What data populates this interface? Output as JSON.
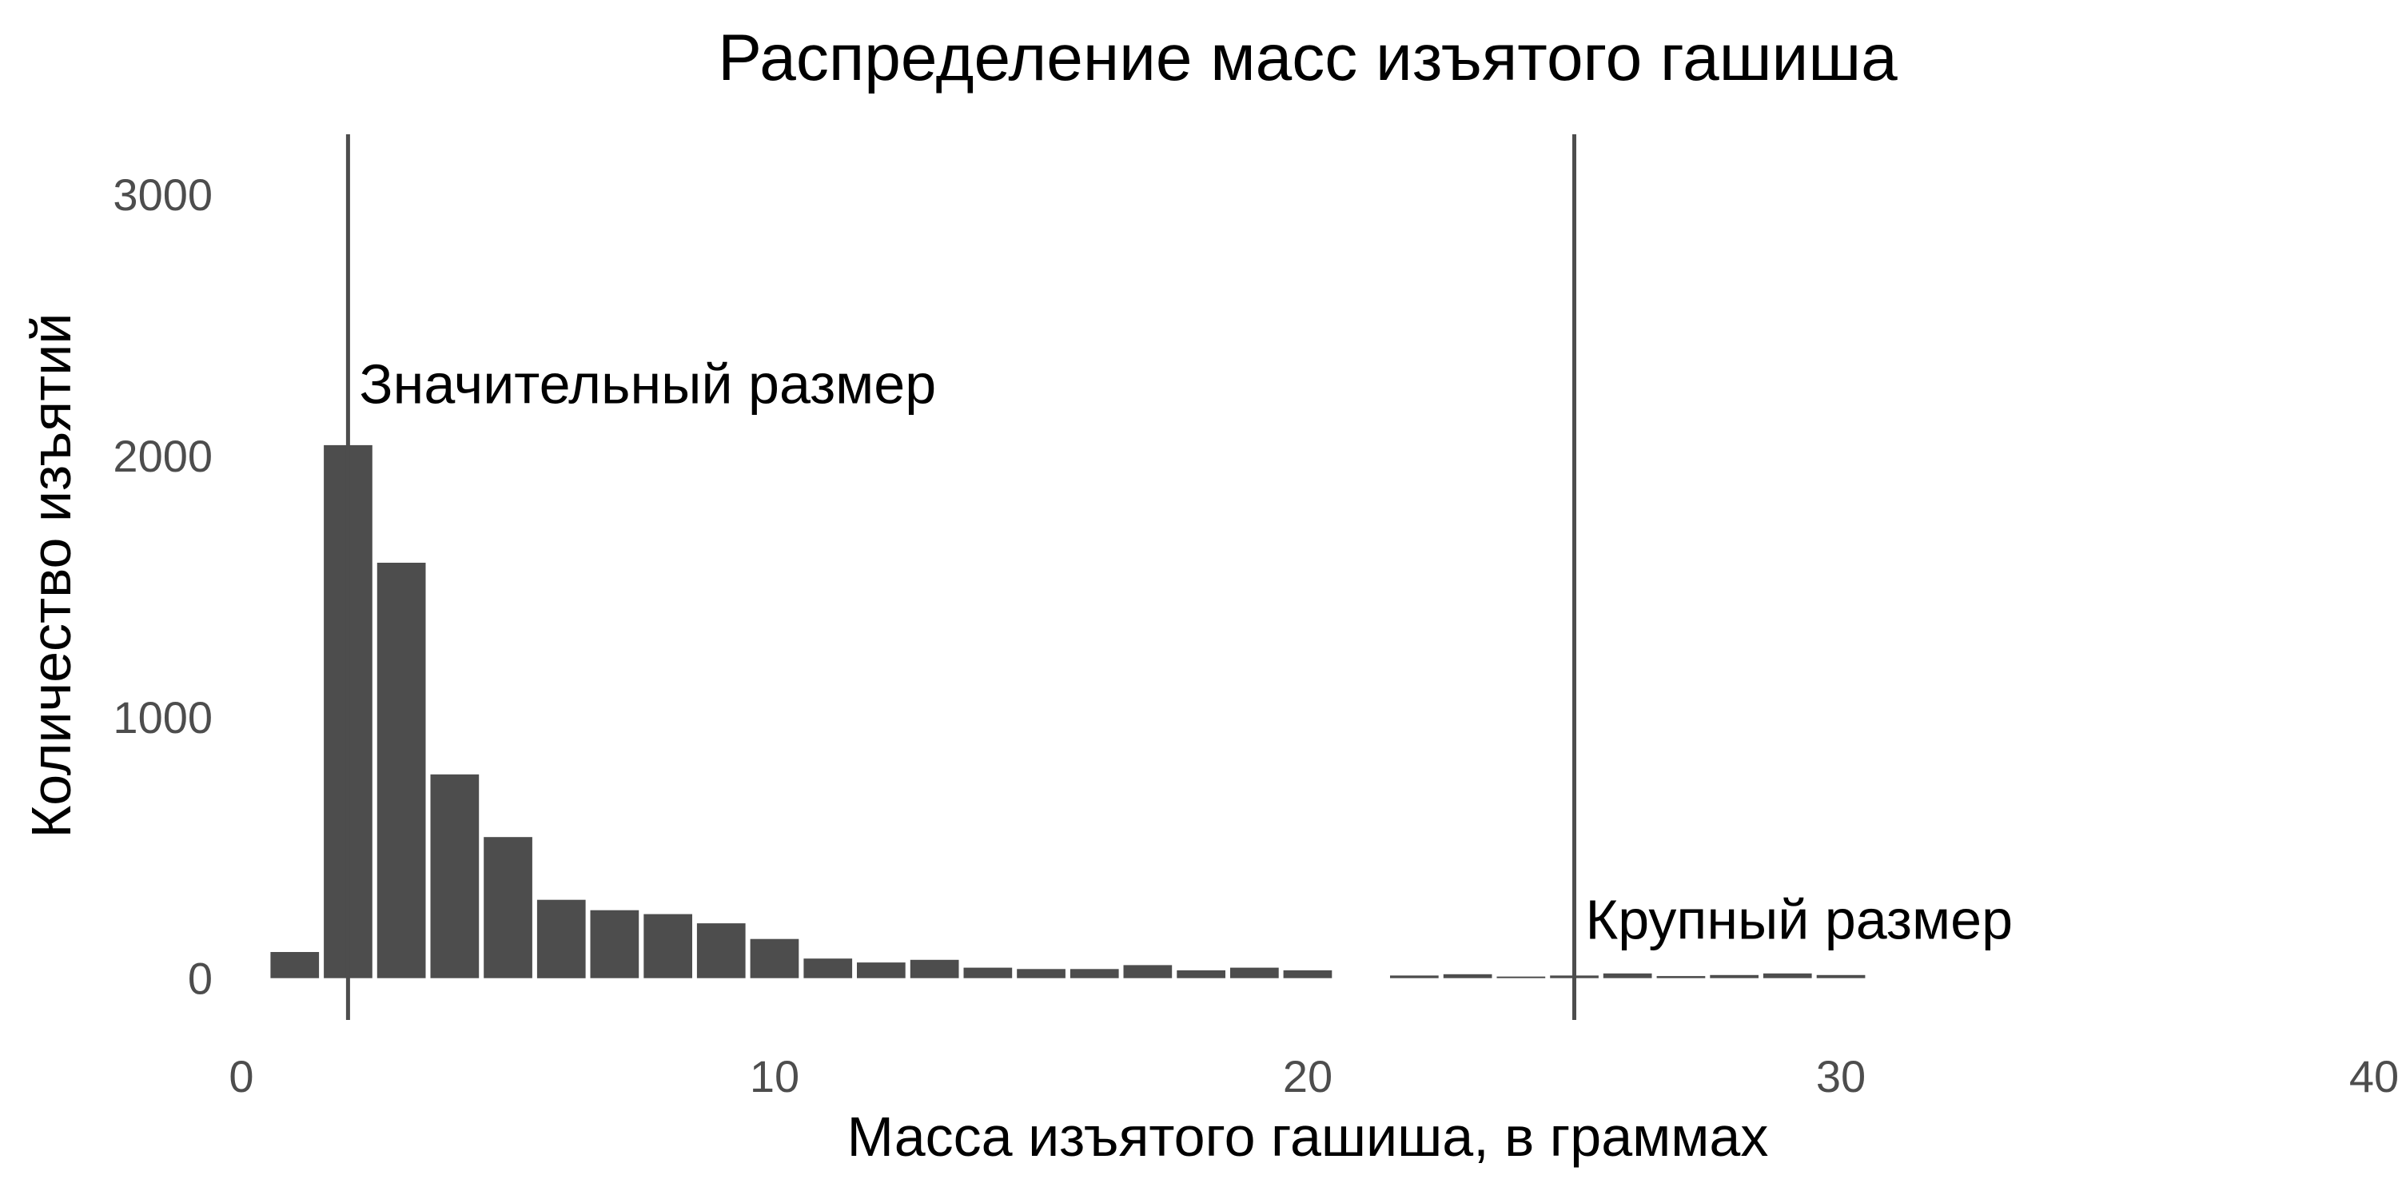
{
  "chart_data": {
    "type": "bar",
    "title": "Распределение масс изъятого гашиша",
    "xlabel": "Масса изъятого гашиша, в граммах",
    "ylabel": "Количество изъятий",
    "xlim": [
      0,
      40
    ],
    "ylim": [
      -160,
      3230
    ],
    "x_ticks": [
      "0",
      "10",
      "20",
      "30",
      "40"
    ],
    "y_ticks": [
      "0",
      "1000",
      "2000",
      "3000"
    ],
    "grid": false,
    "bin_width": 1,
    "bins": [
      {
        "x": 1,
        "y": 100
      },
      {
        "x": 2,
        "y": 2040
      },
      {
        "x": 3,
        "y": 1590
      },
      {
        "x": 4,
        "y": 780
      },
      {
        "x": 5,
        "y": 540
      },
      {
        "x": 6,
        "y": 300
      },
      {
        "x": 7,
        "y": 260
      },
      {
        "x": 8,
        "y": 245
      },
      {
        "x": 9,
        "y": 210
      },
      {
        "x": 10,
        "y": 150
      },
      {
        "x": 11,
        "y": 75
      },
      {
        "x": 12,
        "y": 60
      },
      {
        "x": 13,
        "y": 70
      },
      {
        "x": 14,
        "y": 40
      },
      {
        "x": 15,
        "y": 35
      },
      {
        "x": 16,
        "y": 35
      },
      {
        "x": 17,
        "y": 50
      },
      {
        "x": 18,
        "y": 30
      },
      {
        "x": 19,
        "y": 40
      },
      {
        "x": 20,
        "y": 30
      },
      {
        "x": 21,
        "y": 0
      },
      {
        "x": 22,
        "y": 10
      },
      {
        "x": 23,
        "y": 15
      },
      {
        "x": 24,
        "y": 5
      },
      {
        "x": 25,
        "y": 10
      },
      {
        "x": 26,
        "y": 18
      },
      {
        "x": 27,
        "y": 8
      },
      {
        "x": 28,
        "y": 12
      },
      {
        "x": 29,
        "y": 18
      },
      {
        "x": 30,
        "y": 12
      }
    ],
    "reference_lines": [
      {
        "x": 2,
        "label": "Значительный размер"
      },
      {
        "x": 25,
        "label": "Крупный размер"
      }
    ],
    "colors": {
      "bars": "#4d4d4d",
      "lines": "#4d4d4d",
      "ticks": "#4d4d4d"
    }
  }
}
